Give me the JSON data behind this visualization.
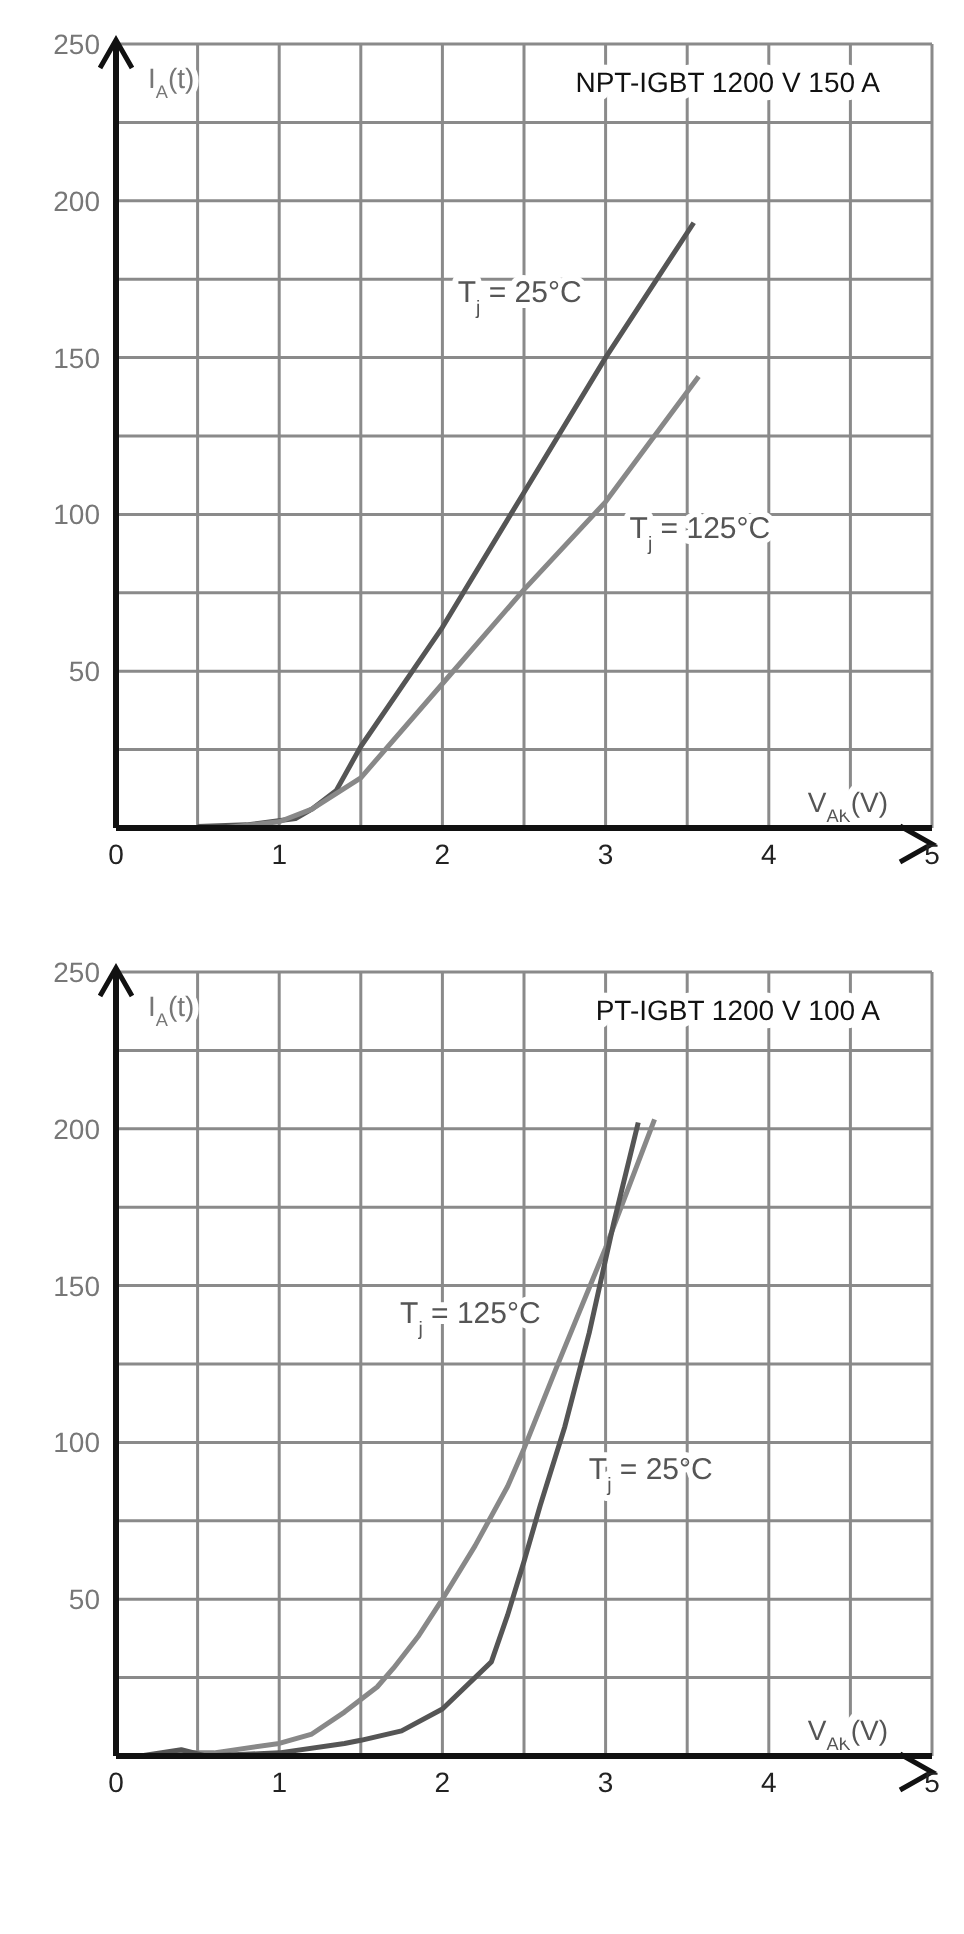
{
  "chart_data": [
    {
      "type": "line",
      "title": "NPT-IGBT 1200 V 150 A",
      "xlabel": "V$_{AK}$(V)",
      "ylabel": "I$_{A}$(t)",
      "grid": true,
      "xlim": [
        0,
        5
      ],
      "xticks": [
        0,
        {
          "value": 0.5,
          "label": null
        },
        1,
        {
          "value": 1.5,
          "label": null
        },
        2,
        {
          "value": 2.5,
          "label": null
        },
        3,
        {
          "value": 3.5,
          "label": null
        },
        4,
        {
          "value": 4.5,
          "label": null
        },
        5
      ],
      "ylim": [
        0,
        250
      ],
      "yticks": [
        {
          "value": 0,
          "label": null
        },
        {
          "value": 25,
          "label": null
        },
        50,
        {
          "value": 75,
          "label": null
        },
        100,
        {
          "value": 125,
          "label": null
        },
        150,
        {
          "value": 175,
          "label": null
        },
        200,
        {
          "value": 225,
          "label": null
        },
        250
      ],
      "series": [
        {
          "name": "T$_{j}$ = 25°C",
          "color": "#555555",
          "x": [
            0.5,
            0.8,
            1.1,
            1.2,
            1.35,
            1.5,
            2,
            2.5,
            3,
            3.54
          ],
          "values": [
            0.5,
            1,
            3,
            6,
            12,
            26,
            64,
            107,
            150,
            193
          ]
        },
        {
          "name": "T$_{j}$ = 125°C",
          "color": "#888888",
          "x": [
            0.65,
            1,
            1.2,
            1.5,
            2,
            2.5,
            3,
            3.57
          ],
          "values": [
            0,
            2,
            6,
            16,
            46,
            76,
            104,
            144
          ]
        }
      ]
    },
    {
      "type": "line",
      "title": "PT-IGBT 1200 V 100 A",
      "xlabel": "V$_{AK}$(V)",
      "ylabel": "I$_{A}$(t)",
      "grid": true,
      "xlim": [
        0,
        5
      ],
      "xticks": [
        0,
        {
          "value": 0.5,
          "label": null
        },
        1,
        {
          "value": 1.5,
          "label": null
        },
        2,
        {
          "value": 2.5,
          "label": null
        },
        3,
        {
          "value": 3.5,
          "label": null
        },
        4,
        {
          "value": 4.5,
          "label": null
        },
        5
      ],
      "ylim": [
        0,
        250
      ],
      "yticks": [
        {
          "value": 0,
          "label": null
        },
        {
          "value": 25,
          "label": null
        },
        50,
        {
          "value": 75,
          "label": null
        },
        100,
        {
          "value": 125,
          "label": null
        },
        150,
        {
          "value": 175,
          "label": null
        },
        200,
        {
          "value": 225,
          "label": null
        },
        250
      ],
      "series": [
        {
          "name": "T$_{j}$ = 125°C",
          "color": "#888888",
          "x": [
            0.15,
            0.4,
            0.6,
            1,
            1.2,
            1.4,
            1.6,
            1.7,
            1.85,
            2,
            2.2,
            2.4,
            2.5,
            2.7,
            3,
            3.3
          ],
          "values": [
            0,
            1,
            1,
            4,
            7,
            14,
            22,
            28,
            38,
            50,
            67,
            86,
            98,
            124,
            162,
            203
          ]
        },
        {
          "name": "T$_{j}$ = 25°C",
          "color": "#555555",
          "x": [
            0.15,
            0.4,
            0.55,
            1,
            1.4,
            1.5,
            1.75,
            2,
            2.3,
            2.4,
            2.5,
            2.6,
            2.75,
            2.9,
            3.05,
            3.2
          ],
          "values": [
            0,
            2,
            0,
            1,
            4,
            5,
            8,
            15,
            30,
            45,
            62,
            80,
            105,
            135,
            170,
            202
          ]
        }
      ]
    }
  ]
}
